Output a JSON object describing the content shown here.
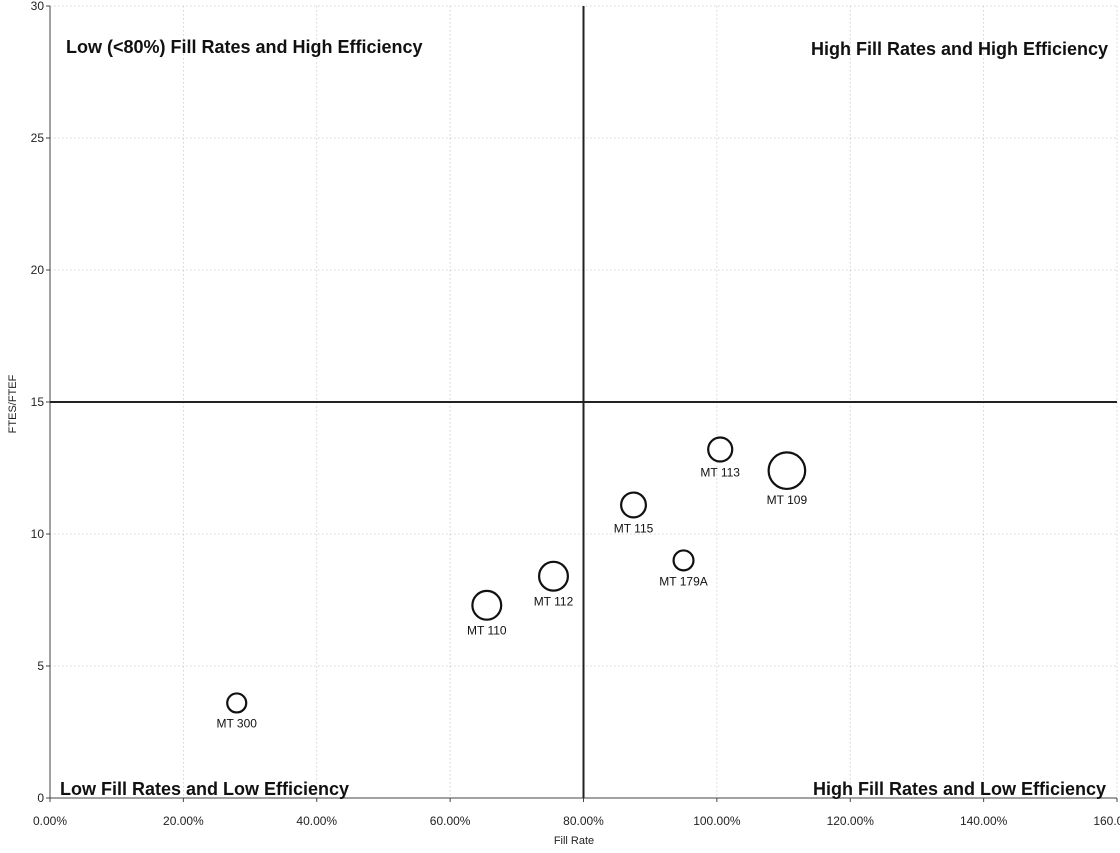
{
  "chart_data": {
    "type": "scatter",
    "subtype": "bubble",
    "title": "",
    "xlabel": "Fill Rate",
    "ylabel": "FTES/FTEF",
    "xlim": [
      0,
      1.6
    ],
    "ylim": [
      0,
      30
    ],
    "x_ticks": [
      0,
      0.2,
      0.4,
      0.6,
      0.8,
      1.0,
      1.2,
      1.4,
      1.6
    ],
    "x_tick_labels": [
      "0.00%",
      "20.00%",
      "40.00%",
      "60.00%",
      "80.00%",
      "100.00%",
      "120.00%",
      "140.00%",
      "160.00%"
    ],
    "y_ticks": [
      0,
      5,
      10,
      15,
      20,
      25,
      30
    ],
    "y_tick_labels": [
      "0",
      "5",
      "10",
      "15",
      "20",
      "25",
      "30"
    ],
    "grid": true,
    "reference_lines": {
      "x": 0.8,
      "y": 15
    },
    "quadrant_labels": {
      "top_left": "Low (<80%) Fill Rates and High Efficiency",
      "top_right": "High Fill Rates and High Efficiency",
      "bottom_left": "Low Fill Rates and Low Efficiency",
      "bottom_right": "High Fill Rates and Low Efficiency"
    },
    "points": [
      {
        "label": "MT 300",
        "x": 0.28,
        "y": 3.6,
        "size": 1.0
      },
      {
        "label": "MT 110",
        "x": 0.655,
        "y": 7.3,
        "size": 2.3
      },
      {
        "label": "MT 112",
        "x": 0.755,
        "y": 8.4,
        "size": 2.3
      },
      {
        "label": "MT 115",
        "x": 0.875,
        "y": 11.1,
        "size": 1.7
      },
      {
        "label": "MT 179A",
        "x": 0.95,
        "y": 9.0,
        "size": 1.1
      },
      {
        "label": "MT 113",
        "x": 1.005,
        "y": 13.2,
        "size": 1.6
      },
      {
        "label": "MT 109",
        "x": 1.105,
        "y": 12.4,
        "size": 3.7
      }
    ]
  }
}
